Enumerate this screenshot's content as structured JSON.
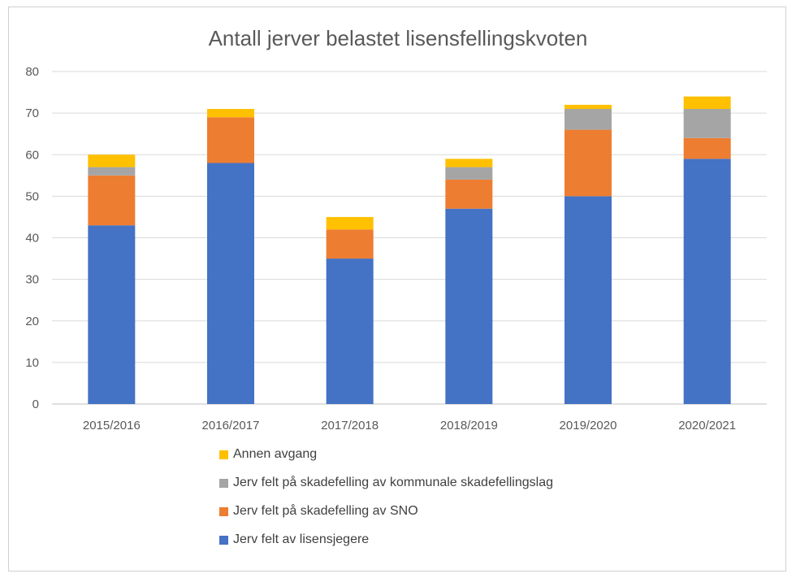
{
  "chart_data": {
    "type": "bar",
    "stacked": true,
    "title": "Antall jerver belastet lisensfellingskvoten",
    "xlabel": "",
    "ylabel": "",
    "ylim": [
      0,
      80
    ],
    "yticks": [
      0,
      10,
      20,
      30,
      40,
      50,
      60,
      70,
      80
    ],
    "grid": true,
    "legend_position": "bottom",
    "categories": [
      "2015/2016",
      "2016/2017",
      "2017/2018",
      "2018/2019",
      "2019/2020",
      "2020/2021"
    ],
    "series": [
      {
        "name": "Jerv felt av lisensjegere",
        "color": "#4472c4",
        "values": [
          43,
          58,
          35,
          47,
          50,
          59
        ]
      },
      {
        "name": "Jerv felt på skadefelling av SNO",
        "color": "#ed7d31",
        "values": [
          12,
          11,
          7,
          7,
          16,
          5
        ]
      },
      {
        "name": "Jerv felt på skadefelling av kommunale skadefellingslag",
        "color": "#a5a5a5",
        "values": [
          2,
          0,
          0,
          3,
          5,
          7
        ]
      },
      {
        "name": "Annen avgang",
        "color": "#ffc000",
        "values": [
          3,
          2,
          3,
          2,
          1,
          3
        ]
      }
    ],
    "legend_order": [
      3,
      2,
      1,
      0
    ]
  }
}
